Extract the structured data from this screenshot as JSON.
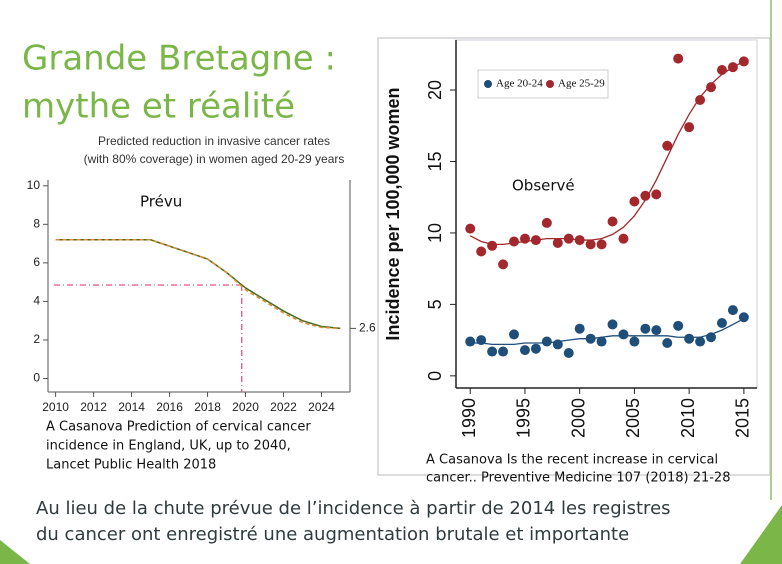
{
  "slide": {
    "title": [
      "Grande Bretagne :",
      "mythe et réalité"
    ],
    "conclusion": [
      "Au lieu de la chute prévue de l’incidence à partir de 2014 les registres",
      "du cancer ont enregistré une augmentation brutale et importante"
    ]
  },
  "chart_data": [
    {
      "type": "line",
      "title": [
        "Predicted reduction in invasive cancer rates",
        "(with 80% coverage) in women aged 20-29 years"
      ],
      "annotation": "Prévu",
      "caption": [
        "A Casanova Prediction of cervical cancer",
        "incidence in England, UK, up to 2040,",
        "Lancet Public Health 2018"
      ],
      "x": [
        2010,
        2015,
        2018,
        2019,
        2020,
        2021,
        2022,
        2023,
        2024,
        2025
      ],
      "series": [
        {
          "color": "#4a6b1f",
          "dash": "none",
          "values": [
            7.2,
            7.2,
            6.2,
            5.5,
            4.7,
            4.1,
            3.5,
            3.0,
            2.7,
            2.6
          ]
        },
        {
          "color": "#e08a2c",
          "dash": "4 3",
          "values": [
            7.2,
            7.2,
            6.2,
            5.5,
            4.6,
            4.0,
            3.4,
            2.9,
            2.65,
            2.6
          ]
        }
      ],
      "reference": {
        "x": 2019.8,
        "y": 4.85,
        "color": "#e75480"
      },
      "end_label": 2.6,
      "xlim": [
        2009.6,
        2025.5
      ],
      "xticks": [
        2010,
        2012,
        2014,
        2016,
        2018,
        2020,
        2022,
        2024
      ],
      "ylim": [
        -0.7,
        10.3
      ],
      "yticks": [
        0,
        2,
        4,
        6,
        8,
        10
      ]
    },
    {
      "type": "scatter",
      "y_label": "Incidence per 100,000 women",
      "annotation": "Observé",
      "caption": [
        "A Casanova Is the recent increase in cervical",
        "cancer.. Preventive Medicine 107 (2018) 21-28"
      ],
      "x": [
        1990,
        1991,
        1992,
        1993,
        1994,
        1995,
        1996,
        1997,
        1998,
        1999,
        2000,
        2001,
        2002,
        2003,
        2004,
        2005,
        2006,
        2007,
        2008,
        2009,
        2010,
        2011,
        2012,
        2013,
        2014,
        2015
      ],
      "series": [
        {
          "name": "Age 20-24",
          "color": "#1f4e79",
          "values": [
            2.4,
            2.5,
            1.7,
            1.7,
            2.9,
            1.8,
            1.9,
            2.4,
            2.2,
            1.6,
            3.3,
            2.6,
            2.4,
            3.6,
            2.9,
            2.4,
            3.3,
            3.2,
            2.3,
            3.5,
            2.6,
            2.4,
            2.7,
            3.7,
            4.6,
            4.1
          ],
          "fit": [
            2.3,
            2.3,
            2.2,
            2.2,
            2.2,
            2.3,
            2.3,
            2.3,
            2.4,
            2.5,
            2.6,
            2.6,
            2.7,
            2.8,
            2.8,
            2.8,
            2.8,
            2.8,
            2.8,
            2.7,
            2.7,
            2.7,
            2.9,
            3.2,
            3.6,
            4.0
          ]
        },
        {
          "name": "Age 25-29",
          "color": "#a3282d",
          "values": [
            10.3,
            8.7,
            9.1,
            7.8,
            9.4,
            9.6,
            9.5,
            10.7,
            9.3,
            9.6,
            9.5,
            9.2,
            9.2,
            10.8,
            9.6,
            12.2,
            12.6,
            12.7,
            16.1,
            22.2,
            17.4,
            19.3,
            20.2,
            21.4,
            21.6,
            22.0
          ],
          "fit": [
            9.8,
            9.4,
            9.2,
            9.2,
            9.3,
            9.4,
            9.5,
            9.6,
            9.6,
            9.6,
            9.5,
            9.5,
            9.6,
            9.9,
            10.4,
            11.2,
            12.3,
            13.7,
            15.3,
            16.9,
            18.3,
            19.5,
            20.4,
            21.1,
            21.6,
            22.0
          ]
        }
      ],
      "xlim": [
        1988.7,
        2016.2
      ],
      "xticks": [
        1990,
        1995,
        2000,
        2005,
        2010,
        2015
      ],
      "ylim": [
        -0.85,
        23.5
      ],
      "yticks": [
        0,
        5,
        10,
        15,
        20
      ]
    }
  ]
}
